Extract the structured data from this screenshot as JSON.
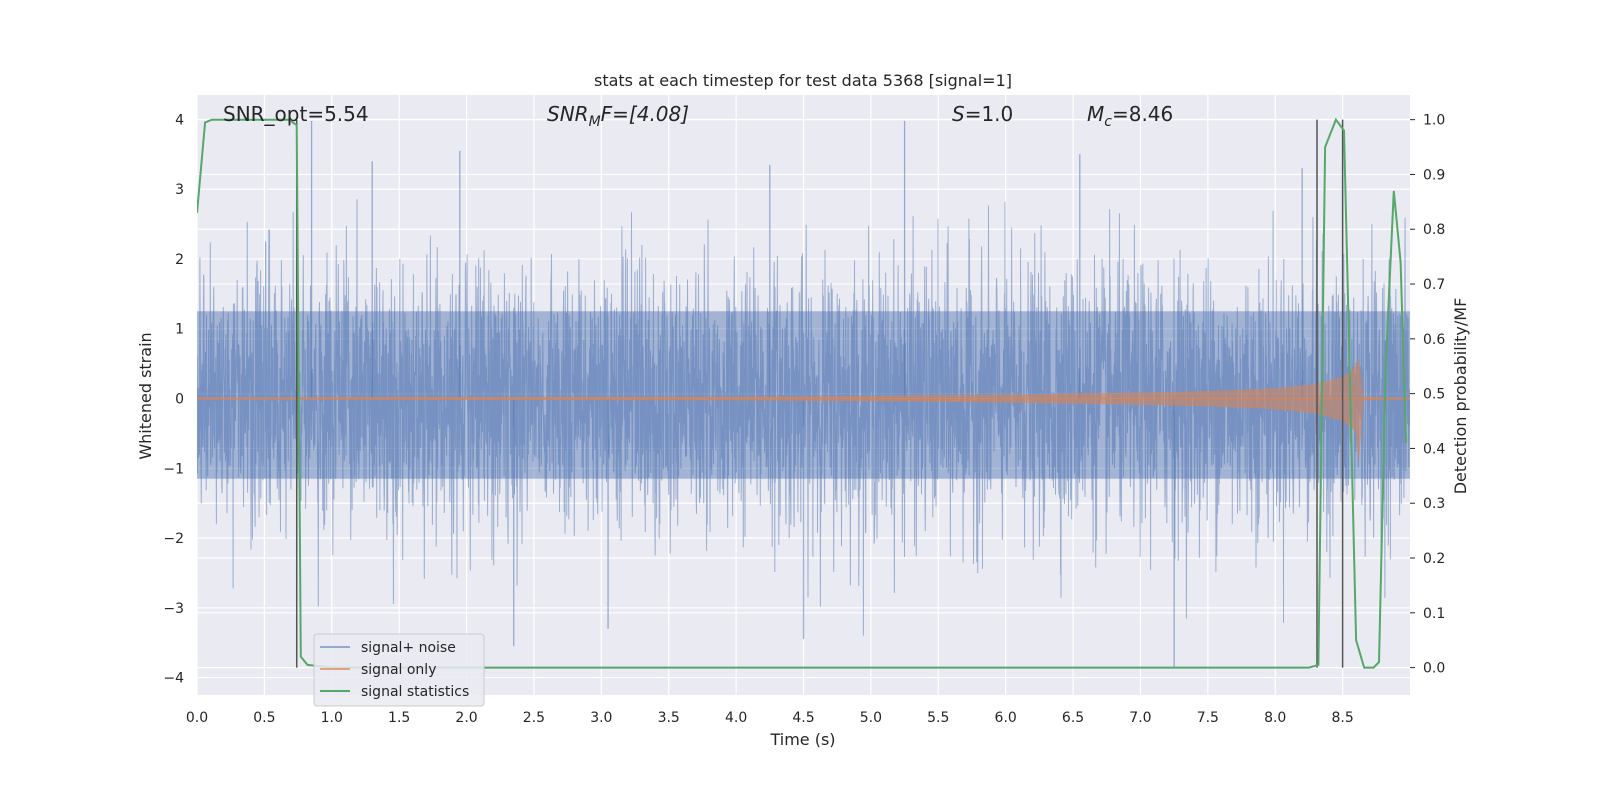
{
  "chart_data": {
    "type": "line",
    "title": "stats at each timestep for test data 5368 [signal=1]",
    "xlabel": "Time (s)",
    "ylabel": "Whitened strain",
    "y2label": "Detection probability/MF",
    "xlim": [
      0.0,
      9.0
    ],
    "ylim": [
      -4.25,
      4.35
    ],
    "y2lim": [
      -0.05,
      1.045
    ],
    "xticks": [
      "0.0",
      "0.5",
      "1.0",
      "1.5",
      "2.0",
      "2.5",
      "3.0",
      "3.5",
      "4.0",
      "4.5",
      "5.0",
      "5.5",
      "6.0",
      "6.5",
      "7.0",
      "7.5",
      "8.0",
      "8.5"
    ],
    "xtick_values": [
      0.0,
      0.5,
      1.0,
      1.5,
      2.0,
      2.5,
      3.0,
      3.5,
      4.0,
      4.5,
      5.0,
      5.5,
      6.0,
      6.5,
      7.0,
      7.5,
      8.0,
      8.5
    ],
    "yticks": [
      "−4",
      "−3",
      "−2",
      "−1",
      "0",
      "1",
      "2",
      "3",
      "4"
    ],
    "ytick_values": [
      -4,
      -3,
      -2,
      -1,
      0,
      1,
      2,
      3,
      4
    ],
    "y2ticks": [
      "0.0",
      "0.1",
      "0.2",
      "0.3",
      "0.4",
      "0.5",
      "0.6",
      "0.7",
      "0.8",
      "0.9",
      "1.0"
    ],
    "y2tick_values": [
      0.0,
      0.1,
      0.2,
      0.3,
      0.4,
      0.5,
      0.6,
      0.7,
      0.8,
      0.9,
      1.0
    ],
    "grid": true,
    "legend_placement": "lower-left",
    "annotations": [
      "SNR_opt=5.54",
      "SNR",
      "M",
      "F=[4.08]",
      "S",
      "=1.0",
      "M",
      "c",
      "=8.46"
    ],
    "vlines_x": [
      0.74,
      8.31,
      8.5
    ],
    "series": [
      {
        "name": "signal+ noise",
        "color": "#4c72b0",
        "kind": "noise-band",
        "envelope_typical": [
          -1.5,
          1.6
        ],
        "envelope_peaks": [
          -3.9,
          4.0
        ],
        "spikes": [
          {
            "x": 0.85,
            "y": 3.98
          },
          {
            "x": 1.3,
            "y": 3.4
          },
          {
            "x": 1.95,
            "y": 3.55
          },
          {
            "x": 2.35,
            "y": -3.55
          },
          {
            "x": 3.05,
            "y": -3.3
          },
          {
            "x": 4.25,
            "y": 3.35
          },
          {
            "x": 4.5,
            "y": -3.45
          },
          {
            "x": 5.25,
            "y": 3.98
          },
          {
            "x": 6.55,
            "y": 3.5
          },
          {
            "x": 7.25,
            "y": -3.85
          },
          {
            "x": 8.2,
            "y": 3.3
          },
          {
            "x": 8.5,
            "y": 3.35
          }
        ]
      },
      {
        "name": "signal only",
        "color": "#dd8452",
        "kind": "chirp",
        "x": [
          0.0,
          4.0,
          5.0,
          6.0,
          7.0,
          7.5,
          8.0,
          8.3,
          8.5,
          8.6,
          8.62,
          8.65,
          8.8,
          9.0
        ],
        "amplitude": [
          0.01,
          0.02,
          0.03,
          0.05,
          0.08,
          0.1,
          0.14,
          0.2,
          0.3,
          0.45,
          0.55,
          0.02,
          0.01,
          0.01
        ]
      },
      {
        "name": "signal statistics",
        "color": "#55a868",
        "axis": "right",
        "x": [
          0.0,
          0.06,
          0.11,
          0.5,
          0.68,
          0.74,
          0.77,
          0.82,
          1.0,
          7.4,
          8.25,
          8.32,
          8.37,
          8.45,
          8.51,
          8.6,
          8.66,
          8.73,
          8.77,
          8.82,
          8.88,
          8.93,
          8.97
        ],
        "values": [
          0.83,
          0.995,
          1.0,
          1.0,
          1.0,
          0.99,
          0.02,
          0.005,
          0.0,
          0.0,
          0.0,
          0.005,
          0.95,
          1.0,
          0.98,
          0.05,
          0.0,
          0.0,
          0.01,
          0.55,
          0.87,
          0.74,
          0.41
        ]
      }
    ]
  }
}
